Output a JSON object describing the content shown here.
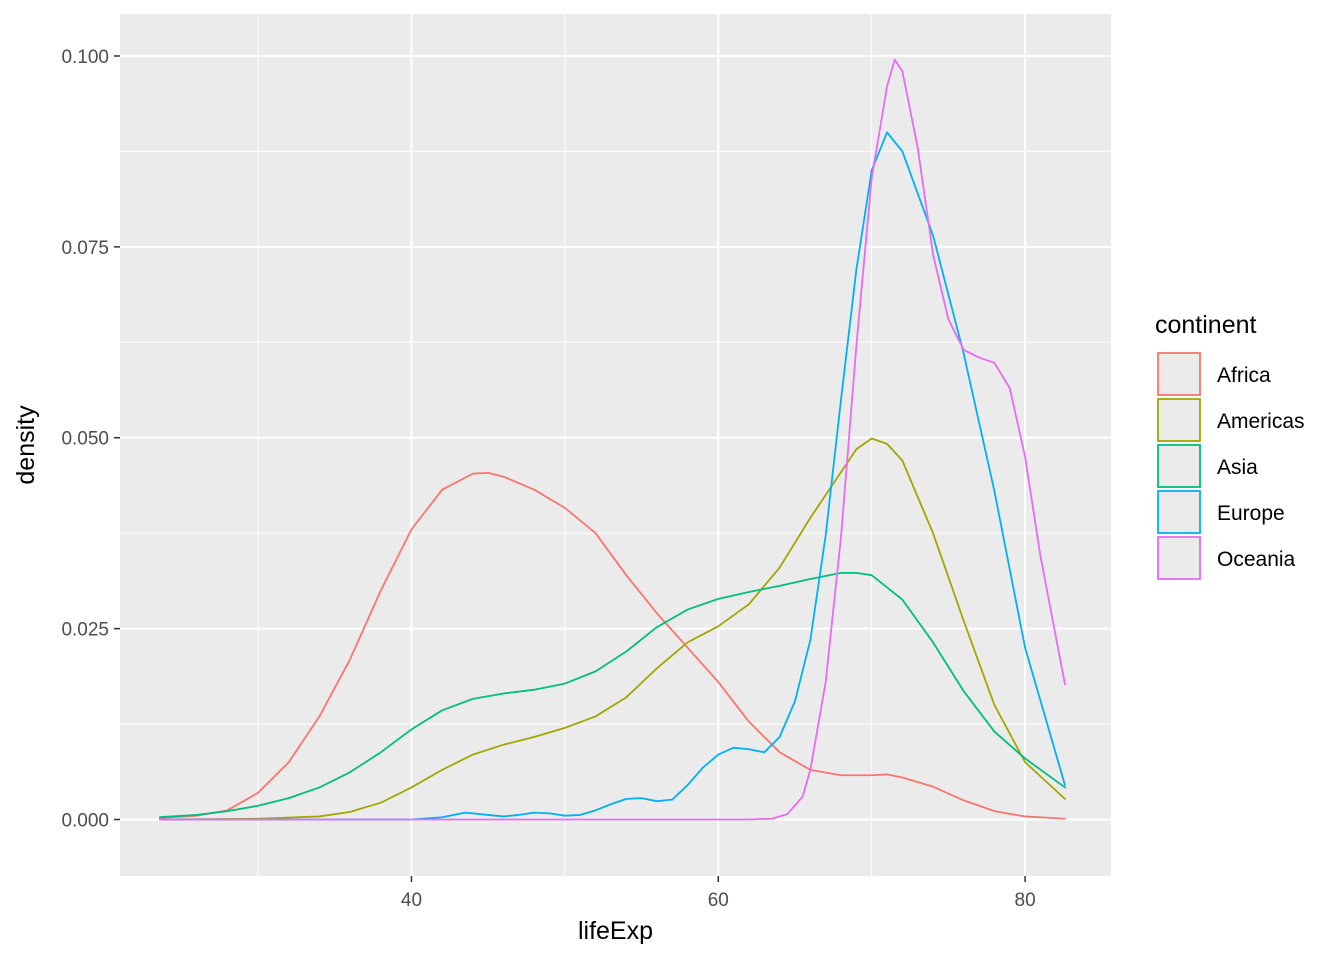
{
  "chart_data": {
    "type": "line",
    "subtype": "density",
    "xlabel": "lifeExp",
    "ylabel": "density",
    "xlim": [
      21.0,
      85.6
    ],
    "ylim": [
      -0.0074,
      0.1055
    ],
    "x_ticks": [
      40,
      60,
      80
    ],
    "x_tick_labels": [
      "40",
      "60",
      "80"
    ],
    "x_minor_ticks": [
      30,
      50,
      70
    ],
    "y_ticks": [
      0.0,
      0.025,
      0.05,
      0.075,
      0.1
    ],
    "y_tick_labels": [
      "0.000",
      "0.025",
      "0.050",
      "0.075",
      "0.100"
    ],
    "y_minor_ticks": [
      0.0125,
      0.0375,
      0.0625,
      0.0875
    ],
    "panel_background": "#ebebeb",
    "grid": true,
    "legend": {
      "title": "continent",
      "position": "right",
      "entries": [
        "Africa",
        "Americas",
        "Asia",
        "Europe",
        "Oceania"
      ]
    },
    "series": [
      {
        "name": "Africa",
        "color": "#F8766D",
        "x": [
          23.6,
          26,
          28,
          30,
          32,
          34,
          36,
          38,
          40,
          42,
          44,
          45,
          46,
          48,
          50,
          52,
          54,
          56,
          58,
          60,
          62,
          64,
          66,
          68,
          70,
          71,
          72,
          74,
          76,
          78,
          80,
          82.6
        ],
        "y": [
          0.0002,
          0.0005,
          0.0012,
          0.0035,
          0.0075,
          0.0135,
          0.021,
          0.03,
          0.038,
          0.0432,
          0.0453,
          0.0454,
          0.0449,
          0.0432,
          0.0408,
          0.0375,
          0.032,
          0.027,
          0.0225,
          0.018,
          0.0128,
          0.0088,
          0.0065,
          0.0058,
          0.0058,
          0.0059,
          0.0055,
          0.0043,
          0.0025,
          0.0011,
          0.0004,
          0.0001
        ]
      },
      {
        "name": "Americas",
        "color": "#A3A500",
        "x": [
          23.6,
          30,
          34,
          36,
          38,
          40,
          42,
          44,
          46,
          48,
          50,
          52,
          54,
          56,
          58,
          60,
          62,
          64,
          66,
          68,
          69,
          70,
          71,
          72,
          74,
          76,
          78,
          80,
          82.6
        ],
        "y": [
          0.0,
          0.0001,
          0.0004,
          0.001,
          0.0022,
          0.0042,
          0.0065,
          0.0085,
          0.0098,
          0.0108,
          0.012,
          0.0135,
          0.016,
          0.0198,
          0.0232,
          0.0253,
          0.0282,
          0.033,
          0.0395,
          0.0455,
          0.0485,
          0.0499,
          0.0492,
          0.047,
          0.0375,
          0.026,
          0.015,
          0.0075,
          0.0027
        ]
      },
      {
        "name": "Asia",
        "color": "#00BF7D",
        "x": [
          23.6,
          26,
          28,
          30,
          32,
          34,
          36,
          38,
          40,
          42,
          44,
          46,
          48,
          50,
          52,
          54,
          56,
          58,
          60,
          62,
          64,
          66,
          68,
          69,
          70,
          72,
          74,
          76,
          78,
          80,
          82.6
        ],
        "y": [
          0.0003,
          0.0006,
          0.0011,
          0.0018,
          0.0028,
          0.0042,
          0.0062,
          0.0088,
          0.0118,
          0.0143,
          0.0158,
          0.0165,
          0.017,
          0.0178,
          0.0194,
          0.022,
          0.0252,
          0.0275,
          0.0289,
          0.0298,
          0.0306,
          0.0315,
          0.0323,
          0.0323,
          0.032,
          0.0288,
          0.0232,
          0.0168,
          0.0115,
          0.008,
          0.0042
        ]
      },
      {
        "name": "Europe",
        "color": "#00B0F6",
        "x": [
          23.6,
          40,
          42,
          43.5,
          45,
          46,
          47,
          48,
          49,
          50,
          51,
          52,
          53,
          54,
          55,
          56,
          57,
          58,
          59,
          60,
          61,
          62,
          63,
          64,
          65,
          66,
          67,
          68,
          69,
          70,
          71,
          72,
          74,
          76,
          78,
          80,
          82.6
        ],
        "y": [
          0.0,
          0.0,
          0.0003,
          0.0009,
          0.0006,
          0.0004,
          0.0006,
          0.0009,
          0.0008,
          0.0005,
          0.0006,
          0.0012,
          0.002,
          0.0027,
          0.0028,
          0.0024,
          0.0026,
          0.0045,
          0.0068,
          0.0085,
          0.0094,
          0.0092,
          0.0088,
          0.0108,
          0.0155,
          0.0235,
          0.0372,
          0.055,
          0.072,
          0.085,
          0.09,
          0.0875,
          0.0765,
          0.061,
          0.043,
          0.0225,
          0.0045
        ]
      },
      {
        "name": "Oceania",
        "color": "#E76BF3",
        "x": [
          23.6,
          62,
          63.5,
          64.5,
          65.5,
          66,
          67,
          68,
          69,
          70,
          71,
          71.5,
          72,
          73,
          74,
          75,
          76,
          77,
          78,
          79,
          80,
          81,
          82.6
        ],
        "y": [
          0.0,
          0.0,
          0.0001,
          0.0007,
          0.003,
          0.0065,
          0.018,
          0.037,
          0.062,
          0.084,
          0.096,
          0.0995,
          0.098,
          0.088,
          0.074,
          0.0655,
          0.0615,
          0.0605,
          0.0598,
          0.0565,
          0.0475,
          0.0345,
          0.0177
        ]
      }
    ]
  }
}
